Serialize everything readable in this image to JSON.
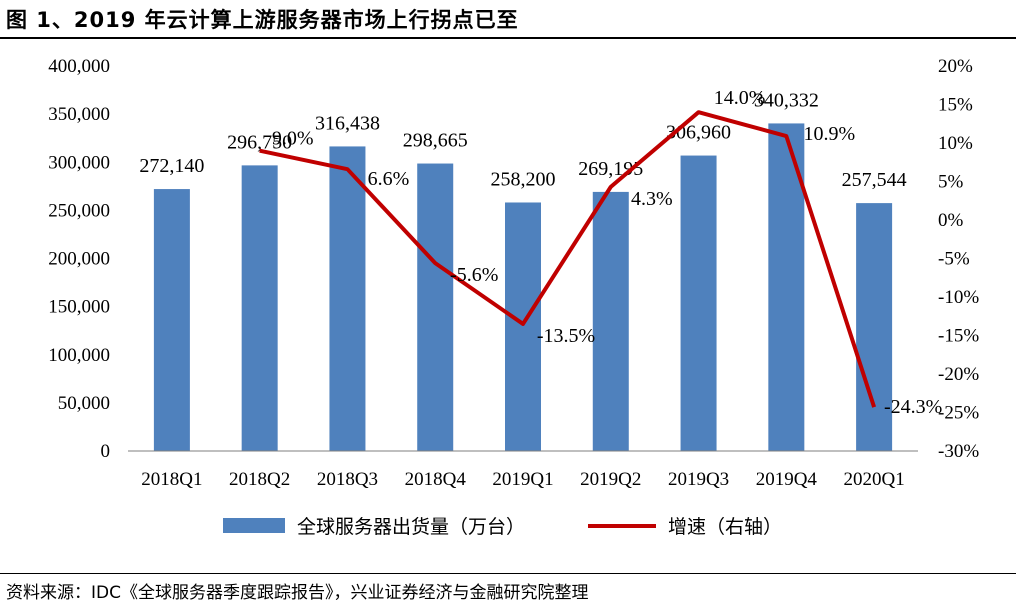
{
  "title": "图 1、2019 年云计算上游服务器市场上行拐点已至",
  "source": "资料来源：IDC《全球服务器季度跟踪报告》，兴业证券经济与金融研究院整理",
  "chart_data": {
    "type": "bar",
    "categories": [
      "2018Q1",
      "2018Q2",
      "2018Q3",
      "2018Q4",
      "2019Q1",
      "2019Q2",
      "2019Q3",
      "2019Q4",
      "2020Q1"
    ],
    "series": [
      {
        "name": "全球服务器出货量（万台）",
        "type": "bar",
        "axis": "left",
        "color": "#4F81BD",
        "values": [
          272140,
          296750,
          316438,
          298665,
          258200,
          269195,
          306960,
          340332,
          257544
        ],
        "labels": [
          "272,140",
          "296,750",
          "316,438",
          "298,665",
          "258,200",
          "269,195",
          "306,960",
          "340,332",
          "257,544"
        ]
      },
      {
        "name": "增速（右轴）",
        "type": "line",
        "axis": "right",
        "color": "#C00000",
        "values": [
          null,
          9.0,
          6.6,
          -5.6,
          -13.5,
          4.3,
          14.0,
          10.9,
          -24.3
        ],
        "labels": [
          "",
          "9.0%",
          "6.6%",
          "-5.6%",
          "-13.5%",
          "4.3%",
          "14.0%",
          "10.9%",
          "-24.3%"
        ]
      }
    ],
    "y_left": {
      "range": [
        0,
        400000
      ],
      "ticks": [
        0,
        50000,
        100000,
        150000,
        200000,
        250000,
        300000,
        350000,
        400000
      ],
      "tick_labels": [
        "0",
        "50,000",
        "100,000",
        "150,000",
        "200,000",
        "250,000",
        "300,000",
        "350,000",
        "400,000"
      ]
    },
    "y_right": {
      "range": [
        -30,
        20
      ],
      "ticks": [
        -30,
        -25,
        -20,
        -15,
        -10,
        -5,
        0,
        5,
        10,
        15,
        20
      ],
      "tick_labels": [
        "-30%",
        "-25%",
        "-20%",
        "-15%",
        "-10%",
        "-5%",
        "0%",
        "5%",
        "10%",
        "15%",
        "20%"
      ]
    },
    "legend": {
      "position": "bottom"
    },
    "grid": false
  }
}
